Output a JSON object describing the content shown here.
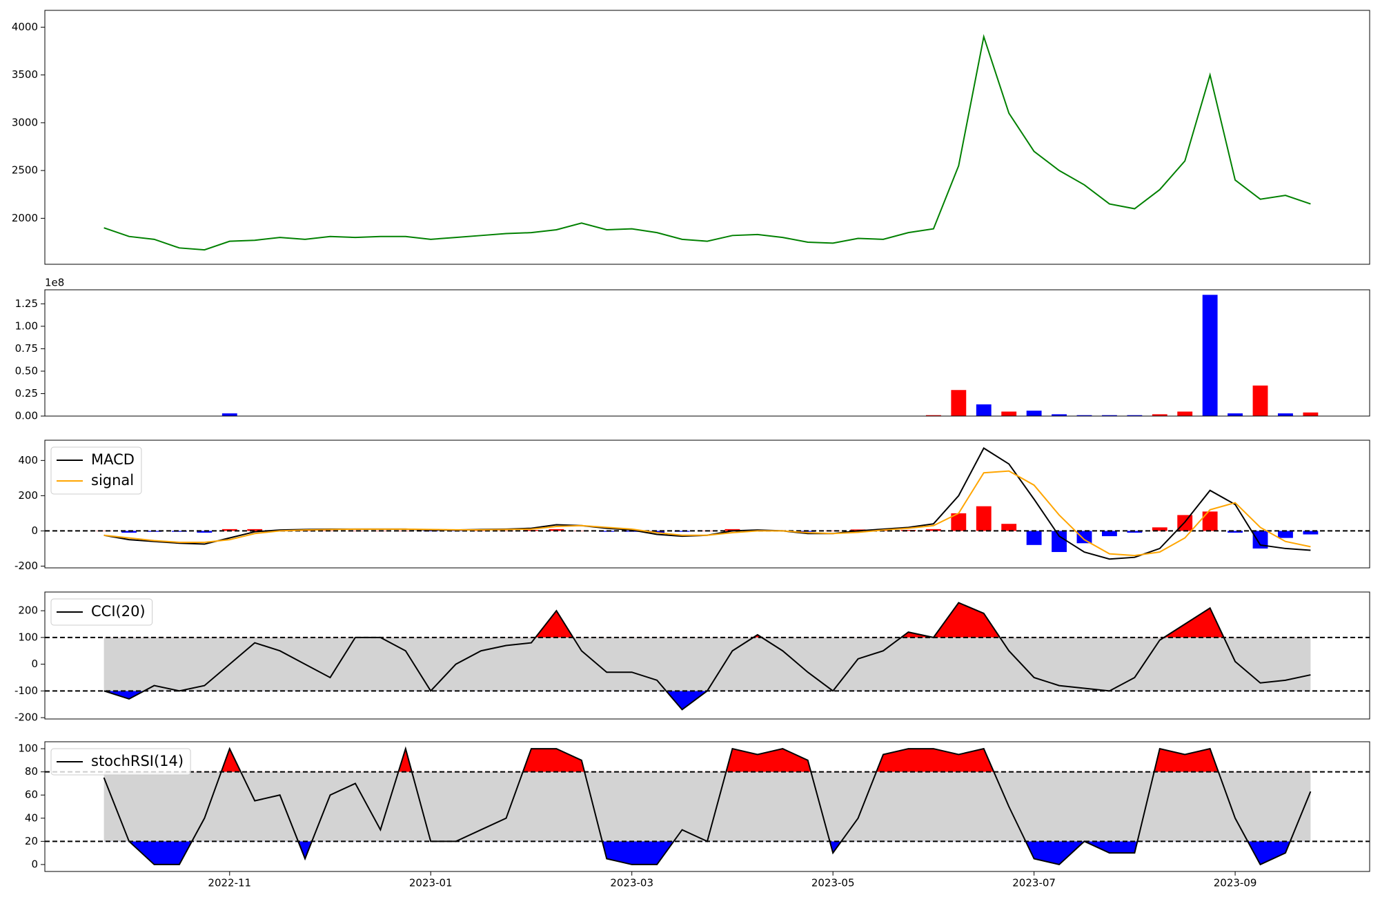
{
  "chart_data": [
    {
      "type": "line",
      "color": "#008000",
      "values": [
        1900,
        1810,
        1780,
        1690,
        1670,
        1760,
        1770,
        1800,
        1780,
        1810,
        1800,
        1810,
        1810,
        1780,
        1800,
        1820,
        1840,
        1850,
        1880,
        1950,
        1880,
        1890,
        1850,
        1780,
        1760,
        1820,
        1830,
        1800,
        1750,
        1740,
        1790,
        1780,
        1850,
        1890,
        2550,
        3900,
        3100,
        2700,
        2500,
        2350,
        2150,
        2100,
        2300,
        2600,
        3500,
        2400,
        2200,
        2240,
        2150
      ],
      "ylim": [
        1519,
        4176
      ],
      "yticks": [
        2000,
        2500,
        3000,
        3500,
        4000
      ]
    },
    {
      "type": "bar",
      "offset_label": "1e8",
      "values": [
        0.002,
        0.002,
        0.002,
        0.002,
        0.002,
        0.03,
        0.002,
        0.002,
        0.002,
        0.002,
        0.002,
        0.002,
        0.002,
        0.002,
        0.002,
        0.002,
        0.002,
        0.003,
        0.002,
        0.002,
        0.002,
        0.002,
        0.002,
        0.002,
        0.002,
        0.002,
        0.002,
        0.002,
        0.002,
        0.002,
        0.002,
        0.002,
        0.003,
        0.01,
        0.29,
        0.13,
        0.05,
        0.06,
        0.02,
        0.01,
        0.01,
        0.01,
        0.02,
        0.05,
        1.35,
        0.03,
        0.34,
        0.03,
        0.04
      ],
      "colors": [
        "red",
        "blue",
        "red",
        "blue",
        "red",
        "blue",
        "red",
        "blue",
        "red",
        "blue",
        "red",
        "blue",
        "red",
        "blue",
        "red",
        "blue",
        "red",
        "red",
        "blue",
        "red",
        "blue",
        "red",
        "blue",
        "red",
        "blue",
        "red",
        "blue",
        "red",
        "blue",
        "red",
        "blue",
        "red",
        "red",
        "red",
        "red",
        "blue",
        "red",
        "blue",
        "blue",
        "blue",
        "blue",
        "blue",
        "red",
        "red",
        "blue",
        "blue",
        "red",
        "blue",
        "red"
      ],
      "ylim": [
        0,
        1.406
      ],
      "yticks": [
        {
          "value": 0,
          "label": "0.00"
        },
        {
          "value": 0.25,
          "label": "0.25"
        },
        {
          "value": 0.5,
          "label": "0.50"
        },
        {
          "value": 0.75,
          "label": "0.75"
        },
        {
          "value": 1,
          "label": "1.00"
        },
        {
          "value": 1.25,
          "label": "1.25"
        }
      ]
    },
    {
      "type": "line",
      "legend": "upper left",
      "hline": 0,
      "series": [
        {
          "name": "MACD",
          "color": "#000000",
          "values": [
            -25,
            -50,
            -60,
            -70,
            -75,
            -40,
            -5,
            5,
            8,
            10,
            10,
            10,
            10,
            5,
            5,
            8,
            10,
            15,
            35,
            30,
            15,
            5,
            -20,
            -30,
            -25,
            0,
            5,
            0,
            -15,
            -15,
            0,
            10,
            20,
            40,
            200,
            470,
            380,
            180,
            -30,
            -120,
            -160,
            -150,
            -100,
            50,
            230,
            150,
            -80,
            -100,
            -110
          ]
        },
        {
          "name": "signal",
          "color": "orange",
          "values": [
            -25,
            -40,
            -55,
            -65,
            -65,
            -50,
            -15,
            0,
            5,
            8,
            10,
            10,
            10,
            8,
            6,
            6,
            8,
            10,
            25,
            30,
            20,
            10,
            -10,
            -25,
            -25,
            -10,
            0,
            0,
            -10,
            -15,
            -8,
            5,
            15,
            30,
            100,
            330,
            340,
            260,
            90,
            -50,
            -130,
            -140,
            -120,
            -40,
            120,
            160,
            20,
            -60,
            -90
          ]
        },
        {
          "type": "bar",
          "values": [
            0,
            -10,
            -5,
            -5,
            -10,
            10,
            10,
            5,
            3,
            2,
            0,
            0,
            0,
            -3,
            -1,
            2,
            2,
            5,
            10,
            0,
            -5,
            -5,
            -10,
            -5,
            0,
            10,
            5,
            0,
            -5,
            0,
            8,
            5,
            5,
            10,
            100,
            140,
            40,
            -80,
            -120,
            -70,
            -30,
            -10,
            20,
            90,
            110,
            -10,
            -100,
            -40,
            -20
          ],
          "colors": [
            "red",
            "blue",
            "blue",
            "blue",
            "blue",
            "red",
            "red",
            "red",
            "red",
            "red",
            "red",
            "red",
            "red",
            "blue",
            "blue",
            "red",
            "red",
            "red",
            "red",
            "red",
            "blue",
            "blue",
            "blue",
            "blue",
            "red",
            "red",
            "red",
            "red",
            "blue",
            "red",
            "red",
            "red",
            "red",
            "red",
            "red",
            "red",
            "red",
            "blue",
            "blue",
            "blue",
            "blue",
            "blue",
            "red",
            "red",
            "red",
            "blue",
            "blue",
            "blue",
            "blue"
          ]
        }
      ],
      "ylim": [
        -210,
        515
      ],
      "yticks": [
        -200,
        0,
        200,
        400
      ]
    },
    {
      "type": "line",
      "legend": "upper left",
      "band": [
        -100,
        100
      ],
      "band_color": "lightgray",
      "fill_above": "red",
      "fill_below": "blue",
      "series": [
        {
          "name": "CCI(20)",
          "color": "#000000",
          "values": [
            -100,
            -130,
            -80,
            -100,
            -80,
            0,
            80,
            50,
            0,
            -50,
            100,
            100,
            50,
            -100,
            0,
            50,
            70,
            80,
            200,
            50,
            -30,
            -30,
            -60,
            -170,
            -100,
            50,
            110,
            50,
            -30,
            -100,
            20,
            50,
            120,
            100,
            230,
            190,
            50,
            -50,
            -80,
            -90,
            -100,
            -50,
            90,
            150,
            210,
            10,
            -70,
            -60,
            -40
          ]
        }
      ],
      "ylim": [
        -205,
        270
      ],
      "yticks": [
        -200,
        -100,
        0,
        100,
        200
      ]
    },
    {
      "type": "line",
      "legend": "upper left",
      "band": [
        20,
        80
      ],
      "band_color": "lightgray",
      "fill_above": "red",
      "fill_below": "blue",
      "categories": [
        null,
        null,
        null,
        null,
        null,
        "2022-11",
        null,
        null,
        null,
        null,
        null,
        null,
        null,
        "2023-01",
        null,
        null,
        null,
        null,
        null,
        null,
        null,
        "2023-03",
        null,
        null,
        null,
        null,
        null,
        null,
        null,
        "2023-05",
        null,
        null,
        null,
        null,
        null,
        null,
        null,
        "2023-07",
        null,
        null,
        null,
        null,
        null,
        null,
        null,
        "2023-09",
        null,
        null,
        null
      ],
      "series": [
        {
          "name": "stochRSI(14)",
          "color": "#000000",
          "values": [
            75,
            20,
            0,
            0,
            40,
            100,
            55,
            60,
            5,
            60,
            70,
            30,
            100,
            20,
            20,
            30,
            40,
            100,
            100,
            90,
            5,
            0,
            0,
            30,
            20,
            100,
            95,
            100,
            90,
            10,
            40,
            95,
            100,
            100,
            95,
            100,
            50,
            5,
            0,
            20,
            10,
            10,
            100,
            95,
            100,
            40,
            0,
            10,
            63
          ]
        }
      ],
      "ylim": [
        -6,
        106
      ],
      "yticks": [
        0,
        20,
        40,
        60,
        80,
        100
      ]
    }
  ]
}
